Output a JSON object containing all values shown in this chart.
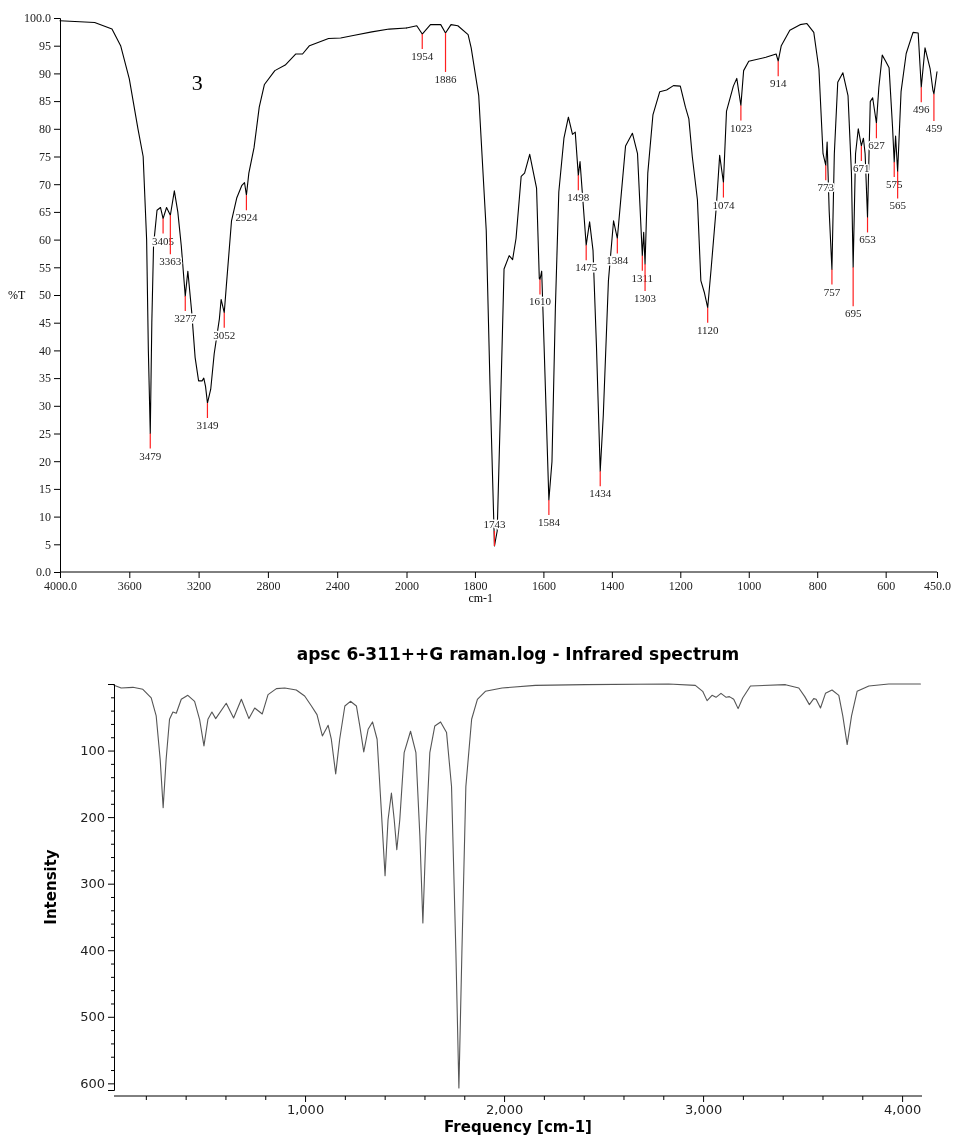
{
  "chart_data": [
    {
      "type": "line",
      "ylabel": "%T",
      "xlim": [
        4000,
        2000
      ],
      "ylim": [
        0,
        100
      ],
      "xticks": [
        {
          "value": 4000,
          "label": "4000.0"
        },
        3600,
        3200,
        2800,
        2400,
        2000
      ],
      "yticks": [
        {
          "value": 0,
          "label": "0.0"
        },
        5,
        10,
        15,
        20,
        25,
        30,
        35,
        40,
        45,
        50,
        55,
        60,
        65,
        70,
        75,
        80,
        85,
        90,
        95,
        {
          "value": 100,
          "label": "100.0"
        }
      ],
      "series": [
        {
          "color": "#000000",
          "x": [
            4000,
            3800,
            3700,
            3650,
            3600,
            3550,
            3520,
            3500,
            3490,
            3479,
            3470,
            3460,
            3440,
            3420,
            3405,
            3385,
            3363,
            3340,
            3320,
            3300,
            3277,
            3262,
            3240,
            3220,
            3200,
            3180,
            3170,
            3160,
            3149,
            3130,
            3110,
            3080,
            3070,
            3052,
            3040,
            3010,
            2980,
            2950,
            2935,
            2924,
            2910,
            2880,
            2850,
            2820,
            2760,
            2700,
            2640,
            2600,
            2560,
            2450,
            2380,
            2300,
            2200,
            2100,
            2000
          ],
          "values": [
            99.5,
            99.2,
            98,
            95,
            89,
            80,
            75,
            60,
            40,
            25,
            45,
            59,
            65.3,
            65.8,
            63.8,
            65.8,
            64.4,
            68.8,
            65,
            58.9,
            49.8,
            54.3,
            47,
            38.7,
            34.5,
            34.5,
            35,
            33.5,
            30.5,
            33,
            39.4,
            45.7,
            49.2,
            46.8,
            51.6,
            63.4,
            67.5,
            69.8,
            70.3,
            68,
            72,
            76.6,
            83.9,
            88,
            90.5,
            91.5,
            93.5,
            93.5,
            95,
            96.3,
            96.4,
            96.9,
            97.5,
            98,
            98.2
          ]
        }
      ],
      "annotations": [
        "3",
        {
          "text": "3479",
          "x": 3479,
          "y": 25
        },
        {
          "text": "3405",
          "x": 3405,
          "y": 63.8
        },
        {
          "text": "3363",
          "x": 3363,
          "y": 64.4
        },
        {
          "text": "3277",
          "x": 3277,
          "y": 49.8
        },
        {
          "text": "3149",
          "x": 3149,
          "y": 30.5
        },
        {
          "text": "3052",
          "x": 3052,
          "y": 46.8
        },
        {
          "text": "2924",
          "x": 2924,
          "y": 68
        }
      ]
    },
    {
      "type": "line",
      "xlabel": "cm-1",
      "xlim": [
        2000,
        450
      ],
      "ylim": [
        0,
        100
      ],
      "tick_labels": "x",
      "xticks": [
        1800,
        1600,
        1400,
        1200,
        1000,
        800,
        600,
        {
          "value": 450,
          "label": "450.0"
        }
      ],
      "series": [
        {
          "color": "#000000",
          "x": [
            2000,
            1970,
            1954,
            1930,
            1900,
            1886,
            1870,
            1850,
            1820,
            1811,
            1789,
            1767,
            1756,
            1743,
            1735,
            1725,
            1715,
            1700,
            1690,
            1680,
            1665,
            1655,
            1640,
            1620,
            1612,
            1610,
            1605,
            1598,
            1584,
            1575,
            1565,
            1555,
            1540,
            1527,
            1515,
            1507,
            1498,
            1493,
            1475,
            1465,
            1455,
            1445,
            1434,
            1425,
            1410,
            1395,
            1384,
            1375,
            1360,
            1340,
            1325,
            1311,
            1307,
            1303,
            1295,
            1280,
            1260,
            1240,
            1220,
            1200,
            1185,
            1175,
            1165,
            1150,
            1140,
            1130,
            1120,
            1110,
            1095,
            1085,
            1074,
            1065,
            1045,
            1035,
            1023,
            1015,
            1000,
            950,
            920,
            914,
            905,
            880,
            850,
            830,
            810,
            795,
            783,
            775,
            771,
            765,
            757,
            750,
            740,
            725,
            710,
            700,
            695,
            688,
            680,
            671,
            665,
            660,
            653,
            645,
            638,
            627,
            620,
            610,
            600,
            590,
            580,
            575,
            571,
            565,
            555,
            540,
            520,
            505,
            496,
            485,
            470,
            462,
            459,
            450
          ],
          "values": [
            98.2,
            98.6,
            97.1,
            98.8,
            98.8,
            97.3,
            98.8,
            98.6,
            97,
            94.6,
            86,
            61.6,
            33.8,
            4.7,
            7.4,
            30.4,
            54.7,
            57.1,
            56.4,
            60.2,
            71.4,
            72,
            75.4,
            69.3,
            53,
            52.8,
            54.3,
            40.8,
            13,
            19.9,
            47.7,
            68.6,
            78.3,
            82.1,
            79,
            79.4,
            71.6,
            74.1,
            59,
            63.2,
            58,
            40.8,
            18.2,
            28.3,
            52.6,
            63.4,
            60.2,
            66.5,
            76.9,
            79.2,
            75.5,
            57.1,
            61.3,
            55.6,
            72,
            82.5,
            86.7,
            87,
            87.8,
            87.7,
            83.9,
            81.8,
            75,
            67.2,
            52.6,
            50.5,
            47.7,
            54.7,
            65.8,
            75.2,
            70.3,
            83.2,
            87.7,
            89.1,
            84.2,
            90.5,
            92.2,
            92.9,
            93.5,
            92.2,
            95,
            97.8,
            98.8,
            99,
            97.4,
            90.8,
            75.5,
            73.4,
            77.6,
            65.1,
            54.6,
            75.5,
            88.4,
            90.1,
            86,
            72,
            55,
            75.5,
            80,
            76.9,
            78.3,
            75.5,
            64,
            84.9,
            85.6,
            81,
            87.4,
            93.3,
            92.2,
            91,
            80.4,
            74,
            78.7,
            72.3,
            86.7,
            93.6,
            97.4,
            97.3,
            87.5,
            94.6,
            90.8,
            87,
            86.3,
            90.3
          ]
        }
      ],
      "annotations": [
        {
          "text": "1954",
          "x": 1954,
          "y": 97.1
        },
        {
          "text": "1886",
          "x": 1886,
          "y": 97.3
        },
        {
          "text": "1743",
          "x": 1743,
          "y": 4.7
        },
        {
          "text": "1610",
          "x": 1610,
          "y": 52.8
        },
        {
          "text": "1584",
          "x": 1584,
          "y": 13
        },
        {
          "text": "1498",
          "x": 1498,
          "y": 71.6
        },
        {
          "text": "1475",
          "x": 1475,
          "y": 59
        },
        {
          "text": "1434",
          "x": 1434,
          "y": 18.2
        },
        {
          "text": "1384",
          "x": 1384,
          "y": 60.2
        },
        {
          "text": "1311",
          "x": 1311,
          "y": 57.1
        },
        {
          "text": "1303",
          "x": 1303,
          "y": 55.6
        },
        {
          "text": "1120",
          "x": 1120,
          "y": 47.7
        },
        {
          "text": "1074",
          "x": 1074,
          "y": 70.3
        },
        {
          "text": "1023",
          "x": 1023,
          "y": 84.2
        },
        {
          "text": "914",
          "x": 914,
          "y": 92.2
        },
        {
          "text": "773",
          "x": 775,
          "y": 73.4
        },
        {
          "text": "757",
          "x": 757,
          "y": 54.6
        },
        {
          "text": "695",
          "x": 695,
          "y": 55
        },
        {
          "text": "671",
          "x": 671,
          "y": 76.9
        },
        {
          "text": "653",
          "x": 653,
          "y": 64
        },
        {
          "text": "627",
          "x": 627,
          "y": 81
        },
        {
          "text": "575",
          "x": 575,
          "y": 74
        },
        {
          "text": "565",
          "x": 565,
          "y": 72.3
        },
        {
          "text": "496",
          "x": 496,
          "y": 87.5
        },
        {
          "text": "459",
          "x": 459,
          "y": 86.3
        }
      ]
    },
    {
      "type": "line",
      "title": "apsc 6-311++G raman.log - Infrared spectrum",
      "xlabel": "Frequency [cm-1]",
      "ylabel": "Intensity",
      "xlim": [
        40,
        4100
      ],
      "ylim": [
        610,
        0
      ],
      "xticks": [
        {
          "value": 200,
          "label": null
        },
        {
          "value": 400,
          "label": null
        },
        {
          "value": 600,
          "label": null
        },
        {
          "value": 800,
          "label": null
        },
        {
          "value": 1000,
          "label": "1,000"
        },
        {
          "value": 1200,
          "label": null
        },
        {
          "value": 1400,
          "label": null
        },
        {
          "value": 1600,
          "label": null
        },
        {
          "value": 1800,
          "label": null
        },
        {
          "value": 2000,
          "label": "2,000"
        },
        {
          "value": 2200,
          "label": null
        },
        {
          "value": 2400,
          "label": null
        },
        {
          "value": 2600,
          "label": null
        },
        {
          "value": 2800,
          "label": null
        },
        {
          "value": 3000,
          "label": "3,000"
        },
        {
          "value": 3200,
          "label": null
        },
        {
          "value": 3400,
          "label": null
        },
        {
          "value": 3600,
          "label": null
        },
        {
          "value": 3800,
          "label": null
        },
        {
          "value": 4000,
          "label": "4,000"
        }
      ],
      "yticks": [
        {
          "value": 20,
          "label": null
        },
        {
          "value": 40,
          "label": null
        },
        {
          "value": 60,
          "label": null
        },
        {
          "value": 80,
          "label": null
        },
        100,
        {
          "value": 120,
          "label": null
        },
        {
          "value": 140,
          "label": null
        },
        {
          "value": 160,
          "label": null
        },
        {
          "value": 180,
          "label": null
        },
        200,
        {
          "value": 220,
          "label": null
        },
        {
          "value": 240,
          "label": null
        },
        {
          "value": 260,
          "label": null
        },
        {
          "value": 280,
          "label": null
        },
        300,
        {
          "value": 320,
          "label": null
        },
        {
          "value": 340,
          "label": null
        },
        {
          "value": 360,
          "label": null
        },
        {
          "value": 380,
          "label": null
        },
        400,
        {
          "value": 420,
          "label": null
        },
        {
          "value": 440,
          "label": null
        },
        {
          "value": 460,
          "label": null
        },
        {
          "value": 480,
          "label": null
        },
        500,
        {
          "value": 520,
          "label": null
        },
        {
          "value": 540,
          "label": null
        },
        {
          "value": 560,
          "label": null
        },
        {
          "value": 580,
          "label": null
        },
        600
      ],
      "series": [
        {
          "color": "#555555",
          "x": [
            40,
            76,
            135,
            185,
            227,
            252,
            272,
            287,
            302,
            319,
            336,
            353,
            378,
            411,
            445,
            470,
            492,
            512,
            532,
            551,
            604,
            641,
            680,
            718,
            747,
            785,
            814,
            856,
            898,
            956,
            998,
            1032,
            1060,
            1087,
            1116,
            1132,
            1154,
            1174,
            1200,
            1228,
            1258,
            1275,
            1295,
            1317,
            1339,
            1362,
            1384,
            1402,
            1417,
            1434,
            1448,
            1461,
            1476,
            1498,
            1530,
            1557,
            1577,
            1592,
            1607,
            1627,
            1652,
            1681,
            1711,
            1736,
            1758,
            1773,
            1788,
            1808,
            1837,
            1866,
            1906,
            1990,
            2157,
            2409,
            2827,
            2961,
            2998,
            3020,
            3045,
            3065,
            3090,
            3116,
            3132,
            3154,
            3176,
            3199,
            3238,
            3414,
            3481,
            3511,
            3534,
            3556,
            3568,
            3590,
            3615,
            3648,
            3682,
            3702,
            3724,
            3746,
            3774,
            3833,
            3933,
            4092
          ],
          "values": [
            2,
            6,
            5,
            8,
            21,
            48,
            113,
            186,
            113,
            53,
            42,
            44,
            23,
            17,
            26,
            53,
            93,
            53,
            42,
            52,
            29,
            51,
            23,
            52,
            36,
            45,
            16,
            7,
            6,
            9,
            18,
            33,
            46,
            78,
            62,
            83,
            135,
            83,
            33,
            26,
            33,
            63,
            102,
            68,
            57,
            83,
            194,
            288,
            204,
            164,
            204,
            249,
            204,
            103,
            71,
            103,
            229,
            359,
            229,
            103,
            63,
            57,
            73,
            154,
            404,
            607,
            404,
            154,
            53,
            23,
            11,
            6,
            2,
            1,
            0,
            2,
            11,
            25,
            17,
            20,
            14,
            20,
            19,
            23,
            37,
            21,
            3,
            1,
            6,
            19,
            31,
            22,
            23,
            36,
            14,
            9,
            17,
            48,
            91,
            48,
            11,
            3,
            0,
            0
          ]
        }
      ]
    }
  ]
}
